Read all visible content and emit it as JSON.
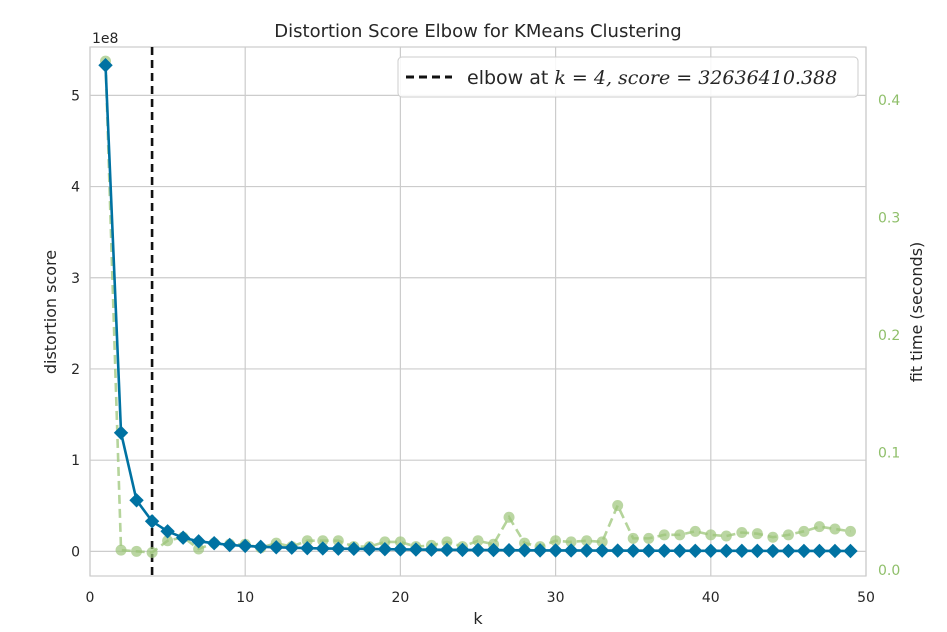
{
  "chart_data": {
    "type": "line",
    "title": "Distortion Score Elbow for KMeans Clustering",
    "xlabel": "k",
    "ylabel": "distortion score",
    "ylabel_right": "fit time (seconds)",
    "y_offset_label": "1e8",
    "xlim": [
      0,
      50
    ],
    "ylim": [
      -0.27,
      5.53
    ],
    "ylim_right": [
      -0.005,
      0.445
    ],
    "x_ticks": [
      "0",
      "10",
      "20",
      "30",
      "40",
      "50"
    ],
    "y_ticks": [
      "0",
      "1",
      "2",
      "3",
      "4",
      "5"
    ],
    "y_right_ticks": [
      "0.0",
      "0.1",
      "0.2",
      "0.3",
      "0.4"
    ],
    "grid": true,
    "legend": {
      "position": "top-right",
      "entry_prefix": "elbow at ",
      "entry_math": "k = 4, score = 32636410.388"
    },
    "elbow_k": 4,
    "colors": {
      "distortion": "#0072a2",
      "fit_time": "#9cc57a",
      "elbow": "#111111",
      "grid": "#cccccc",
      "right_axis_text": "#8fbf6a"
    },
    "series": [
      {
        "name": "distortion score",
        "axis": "left",
        "x": [
          1,
          2,
          3,
          4,
          5,
          6,
          7,
          8,
          9,
          10,
          11,
          12,
          13,
          14,
          15,
          16,
          17,
          18,
          19,
          20,
          21,
          22,
          23,
          24,
          25,
          26,
          27,
          28,
          29,
          30,
          31,
          32,
          33,
          34,
          35,
          36,
          37,
          38,
          39,
          40,
          41,
          42,
          43,
          44,
          45,
          46,
          47,
          48,
          49
        ],
        "values": [
          5.33,
          1.3,
          0.56,
          0.33,
          0.22,
          0.15,
          0.11,
          0.09,
          0.07,
          0.06,
          0.05,
          0.045,
          0.04,
          0.035,
          0.032,
          0.03,
          0.028,
          0.026,
          0.024,
          0.022,
          0.02,
          0.018,
          0.017,
          0.016,
          0.015,
          0.014,
          0.013,
          0.012,
          0.011,
          0.0105,
          0.01,
          0.0095,
          0.009,
          0.0085,
          0.008,
          0.0075,
          0.007,
          0.0068,
          0.0065,
          0.0062,
          0.006,
          0.0058,
          0.0055,
          0.0052,
          0.005,
          0.0048,
          0.0046,
          0.0044,
          0.0042
        ]
      },
      {
        "name": "fit time (seconds)",
        "axis": "right",
        "x": [
          1,
          2,
          3,
          4,
          5,
          6,
          7,
          8,
          9,
          10,
          11,
          12,
          13,
          14,
          15,
          16,
          17,
          18,
          19,
          20,
          21,
          22,
          23,
          24,
          25,
          26,
          27,
          28,
          29,
          30,
          31,
          32,
          33,
          34,
          35,
          36,
          37,
          38,
          39,
          40,
          41,
          42,
          43,
          44,
          45,
          46,
          47,
          48,
          49
        ],
        "values": [
          0.433,
          0.017,
          0.016,
          0.015,
          0.025,
          0.028,
          0.018,
          0.023,
          0.022,
          0.022,
          0.019,
          0.023,
          0.02,
          0.025,
          0.025,
          0.025,
          0.02,
          0.02,
          0.024,
          0.024,
          0.02,
          0.021,
          0.024,
          0.02,
          0.025,
          0.022,
          0.045,
          0.023,
          0.02,
          0.025,
          0.024,
          0.025,
          0.024,
          0.055,
          0.027,
          0.027,
          0.03,
          0.03,
          0.033,
          0.03,
          0.029,
          0.032,
          0.031,
          0.028,
          0.03,
          0.033,
          0.037,
          0.035,
          0.033
        ]
      }
    ]
  }
}
